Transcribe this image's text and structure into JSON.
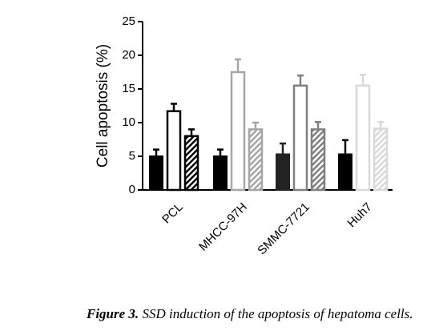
{
  "chart_data": {
    "type": "bar",
    "ylabel": "Cell apoptosis (%)",
    "categories": [
      "PCL",
      "MHCC-97H",
      "SMMC-7721",
      "Huh7"
    ],
    "series": [
      {
        "style": "solid",
        "colors": [
          "#000000",
          "#000000",
          "#222222",
          "#000000"
        ],
        "values": [
          5,
          5,
          5.3,
          5.3
        ],
        "errors": [
          1,
          1,
          1.6,
          2.1
        ]
      },
      {
        "style": "open",
        "colors": [
          "#000000",
          "#a6a6a6",
          "#808080",
          "#d9d9d9"
        ],
        "values": [
          11.7,
          17.5,
          15.5,
          15.5
        ],
        "errors": [
          1.1,
          1.9,
          1.5,
          1.6
        ]
      },
      {
        "style": "hatched",
        "colors": [
          "#000000",
          "#a6a6a6",
          "#808080",
          "#d9d9d9"
        ],
        "values": [
          8,
          9,
          9,
          9.1
        ],
        "errors": [
          1,
          1,
          1.1,
          1
        ]
      }
    ],
    "ylim": [
      0,
      25
    ],
    "yticks": [
      0,
      5,
      10,
      15,
      20,
      25
    ],
    "caption": {
      "label": "Figure 3.",
      "text": "SSD induction of the apoptosis of hepatoma cells."
    }
  }
}
